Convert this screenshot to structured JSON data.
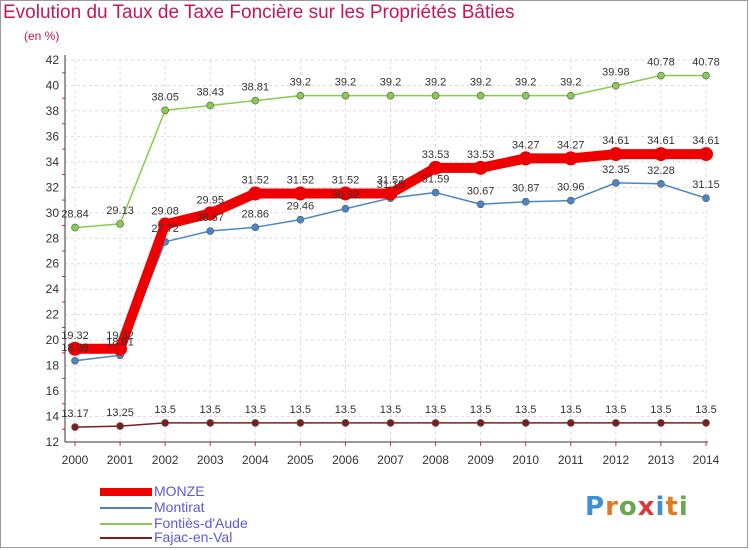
{
  "title": "Evolution du Taux de Taxe Foncière sur les Propriétés Bâties",
  "subtitle": "(en %)",
  "logo": {
    "letters": [
      "P",
      "r",
      "o",
      "x",
      "i",
      "t",
      "i"
    ],
    "colors": [
      "#3a8fd6",
      "#e07b1f",
      "#6aa84f",
      "#d93a3a",
      "#3a8fd6",
      "#e07b1f",
      "#6aa84f"
    ]
  },
  "chart_data": {
    "type": "line",
    "x": [
      "2000",
      "2001",
      "2002",
      "2003",
      "2004",
      "2005",
      "2006",
      "2007",
      "2008",
      "2009",
      "2010",
      "2011",
      "2012",
      "2013",
      "2014"
    ],
    "ylim": [
      12,
      42
    ],
    "yticks": [
      12,
      14,
      16,
      18,
      20,
      22,
      24,
      26,
      28,
      30,
      32,
      34,
      36,
      38,
      40,
      42
    ],
    "grid": true,
    "series": [
      {
        "name": "MONZE",
        "color": "#ee0000",
        "values": [
          19.32,
          19.32,
          29.08,
          29.95,
          31.52,
          31.52,
          31.52,
          31.52,
          33.53,
          33.53,
          34.27,
          34.27,
          34.61,
          34.61,
          34.61
        ],
        "labels": [
          "19.32",
          "19.32",
          "29.08",
          "29.95",
          "31.52",
          "31.52",
          "31.52",
          "31.52",
          "33.53",
          "33.53",
          "34.27",
          "34.27",
          "34.61",
          "34.61",
          "34.61"
        ]
      },
      {
        "name": "Montirat",
        "color": "#4a86c5",
        "values": [
          18.38,
          18.81,
          27.72,
          28.57,
          28.86,
          29.46,
          30.32,
          31.15,
          31.59,
          30.67,
          30.87,
          30.96,
          32.35,
          32.28,
          31.15
        ],
        "labels": [
          "18.38",
          "18.81",
          "27.72",
          "28.57",
          "28.86",
          "29.46",
          "30.32",
          "31.15",
          "31.59",
          "30.67",
          "30.87",
          "30.96",
          "32.35",
          "32.28",
          "31.15"
        ]
      },
      {
        "name": "Fontiès-d'Aude",
        "color": "#86cc4f",
        "values": [
          28.84,
          29.13,
          38.05,
          38.43,
          38.81,
          39.2,
          39.2,
          39.2,
          39.2,
          39.2,
          39.2,
          39.2,
          39.98,
          40.78,
          40.78
        ],
        "labels": [
          "28.84",
          "29.13",
          "38.05",
          "38.43",
          "38.81",
          "39.2",
          "39.2",
          "39.2",
          "39.2",
          "39.2",
          "39.2",
          "39.2",
          "39.98",
          "40.78",
          "40.78"
        ]
      },
      {
        "name": "Fajac-en-Val",
        "color": "#7a1f1f",
        "values": [
          13.17,
          13.25,
          13.5,
          13.5,
          13.5,
          13.5,
          13.5,
          13.5,
          13.5,
          13.5,
          13.5,
          13.5,
          13.5,
          13.5,
          13.5
        ],
        "labels": [
          "13.17",
          "13.25",
          "13.5",
          "13.5",
          "13.5",
          "13.5",
          "13.5",
          "13.5",
          "13.5",
          "13.5",
          "13.5",
          "13.5",
          "13.5",
          "13.5",
          "13.5"
        ]
      }
    ]
  }
}
